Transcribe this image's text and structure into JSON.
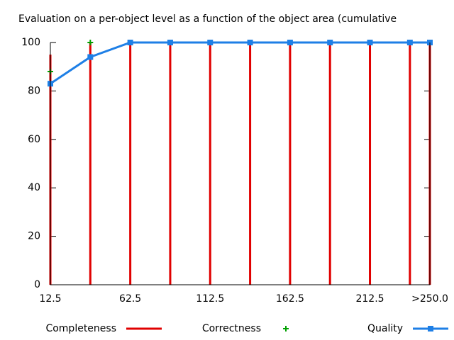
{
  "chart_data": {
    "type": "impulse-line",
    "title": "Evaluation on a per-object level as a function of the object area (cumulative",
    "x": [
      12.5,
      37.5,
      62.5,
      87.5,
      112.5,
      137.5,
      162.5,
      187.5,
      212.5,
      237.5,
      250
    ],
    "xlim": [
      12.5,
      250
    ],
    "xticks": [
      12.5,
      62.5,
      112.5,
      162.5,
      212.5,
      {
        "value": 250,
        "label": ">250.0"
      }
    ],
    "ylim": [
      0,
      100
    ],
    "yticks": [
      0,
      20,
      40,
      60,
      80,
      100
    ],
    "series": [
      {
        "name": "Completeness",
        "color": "#e00000",
        "style": "impulses",
        "values": [
          95,
          100,
          100,
          100,
          100,
          100,
          100,
          100,
          100,
          100,
          100
        ]
      },
      {
        "name": "Correctness",
        "color": "#00a000",
        "style": "points",
        "values": [
          88,
          100,
          100,
          100,
          100,
          100,
          100,
          100,
          100,
          100,
          100
        ]
      },
      {
        "name": "Quality",
        "color": "#1e7fe6",
        "style": "linespoints",
        "values": [
          83,
          94,
          100,
          100,
          100,
          100,
          100,
          100,
          100,
          100,
          100
        ]
      }
    ]
  }
}
